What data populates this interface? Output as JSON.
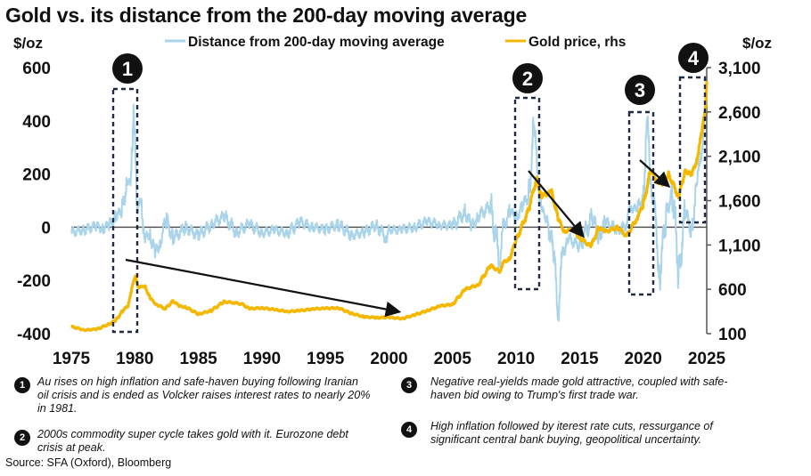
{
  "title": "Gold vs. its distance from the 200-day moving average",
  "source": "Source: SFA (Oxford), Bloomberg",
  "colors": {
    "distance": "#a9d4ea",
    "gold": "#f5b800",
    "axis": "#555555",
    "text": "#111111"
  },
  "notes": [
    {
      "num": "1",
      "text": "Au rises on high inflation and safe-haven buying following Iranian oil crisis and is ended as Volcker raises interest rates to nearly 20% in 1981."
    },
    {
      "num": "2",
      "text": "2000s commodity super cycle takes gold with it. Eurozone debt crisis at peak."
    },
    {
      "num": "3",
      "text": "Negative real-yields made gold attractive, coupled with safe-haven bid owing to Trump's first trade war."
    },
    {
      "num": "4",
      "text": "High inflation followed by iterest rate cuts, ressurgance of significant central bank buying, geopolitical uncertainty."
    }
  ],
  "chart_data": {
    "type": "line",
    "title": "Gold vs. its distance from the 200-day moving average",
    "ylabel": "$/oz",
    "y2label": "$/oz",
    "xlim": [
      1975,
      2025
    ],
    "ylim": [
      -400,
      600
    ],
    "y2lim": [
      100,
      3100
    ],
    "xticks": [
      "1975",
      "1980",
      "1985",
      "1990",
      "1995",
      "2000",
      "2005",
      "2010",
      "2015",
      "2020",
      "2025"
    ],
    "yticks": [
      "600",
      "400",
      "200",
      "0",
      "-200",
      "-400"
    ],
    "y2ticks": [
      "3,100",
      "2,600",
      "2,100",
      "1,600",
      "1,100",
      "600",
      "100"
    ],
    "legend": "top",
    "series": [
      {
        "name": "Distance from 200-day moving average",
        "axis": "left",
        "x": [
          1975,
          1976,
          1977,
          1977.5,
          1978,
          1978.5,
          1979,
          1979.4,
          1979.7,
          1979.9,
          1980.05,
          1980.2,
          1980.5,
          1980.8,
          1981.2,
          1981.6,
          1982,
          1982.5,
          1983,
          1984,
          1985,
          1986,
          1987,
          1988,
          1989,
          1990,
          1991,
          1992,
          1993,
          1994,
          1995,
          1996,
          1997,
          1998,
          1999,
          1999.8,
          2000,
          2001,
          2002,
          2003,
          2004,
          2005,
          2006,
          2006.5,
          2007,
          2008,
          2008.7,
          2009,
          2009.5,
          2010,
          2010.5,
          2011,
          2011.4,
          2011.7,
          2012,
          2012.5,
          2013,
          2013.3,
          2013.6,
          2014,
          2015,
          2016,
          2016.5,
          2017,
          2018,
          2018.7,
          2019,
          2019.5,
          2020,
          2020.3,
          2020.6,
          2020.9,
          2021.3,
          2021.8,
          2022.3,
          2022.8,
          2023.3,
          2023.8,
          2024.2,
          2024.5,
          2024.8,
          2025
        ],
        "y": [
          -20,
          -10,
          5,
          -5,
          10,
          40,
          60,
          180,
          150,
          480,
          250,
          60,
          100,
          -50,
          -20,
          -110,
          -50,
          30,
          -40,
          0,
          -30,
          10,
          40,
          -20,
          10,
          -20,
          -10,
          -20,
          20,
          0,
          -10,
          10,
          -30,
          -20,
          10,
          -40,
          -10,
          -10,
          0,
          20,
          10,
          5,
          60,
          0,
          40,
          80,
          -130,
          0,
          60,
          40,
          80,
          120,
          380,
          200,
          60,
          30,
          -120,
          -330,
          -120,
          -40,
          -70,
          40,
          -40,
          20,
          -10,
          10,
          80,
          60,
          120,
          400,
          180,
          60,
          -180,
          50,
          140,
          -180,
          60,
          -20,
          160,
          250,
          400,
          480
        ]
      },
      {
        "name": "Gold price, rhs",
        "axis": "right",
        "x": [
          1975,
          1976,
          1977,
          1978,
          1978.5,
          1979,
          1979.5,
          1979.8,
          1980.05,
          1980.3,
          1980.8,
          1981.2,
          1981.7,
          1982.4,
          1983,
          1983.5,
          1984,
          1985,
          1986,
          1987,
          1987.8,
          1988.5,
          1989,
          1990,
          1991,
          1992,
          1993,
          1994,
          1995,
          1996,
          1997,
          1998,
          1999,
          2000,
          2001,
          2002,
          2003,
          2004,
          2005,
          2006,
          2007,
          2008,
          2008.7,
          2009,
          2009.5,
          2010,
          2011,
          2011.6,
          2012,
          2012.8,
          2013.3,
          2013.8,
          2014.5,
          2015,
          2015.9,
          2016.5,
          2017,
          2018,
          2018.7,
          2019.5,
          2020,
          2020.6,
          2021,
          2021.5,
          2022,
          2022.8,
          2023.3,
          2023.8,
          2024.2,
          2024.6,
          2024.9,
          2025
        ],
        "y": [
          180,
          140,
          150,
          210,
          250,
          350,
          420,
          650,
          740,
          620,
          640,
          500,
          430,
          380,
          470,
          410,
          400,
          320,
          360,
          460,
          450,
          430,
          380,
          390,
          370,
          350,
          360,
          380,
          385,
          390,
          330,
          290,
          280,
          285,
          270,
          310,
          360,
          410,
          430,
          600,
          650,
          870,
          800,
          900,
          950,
          1150,
          1500,
          1850,
          1650,
          1700,
          1400,
          1250,
          1280,
          1180,
          1080,
          1300,
          1250,
          1300,
          1200,
          1400,
          1550,
          1950,
          1820,
          1800,
          1900,
          1640,
          1950,
          1880,
          2050,
          2350,
          2650,
          2950
        ]
      }
    ],
    "annotations": [
      "1",
      "2",
      "3",
      "4"
    ]
  }
}
